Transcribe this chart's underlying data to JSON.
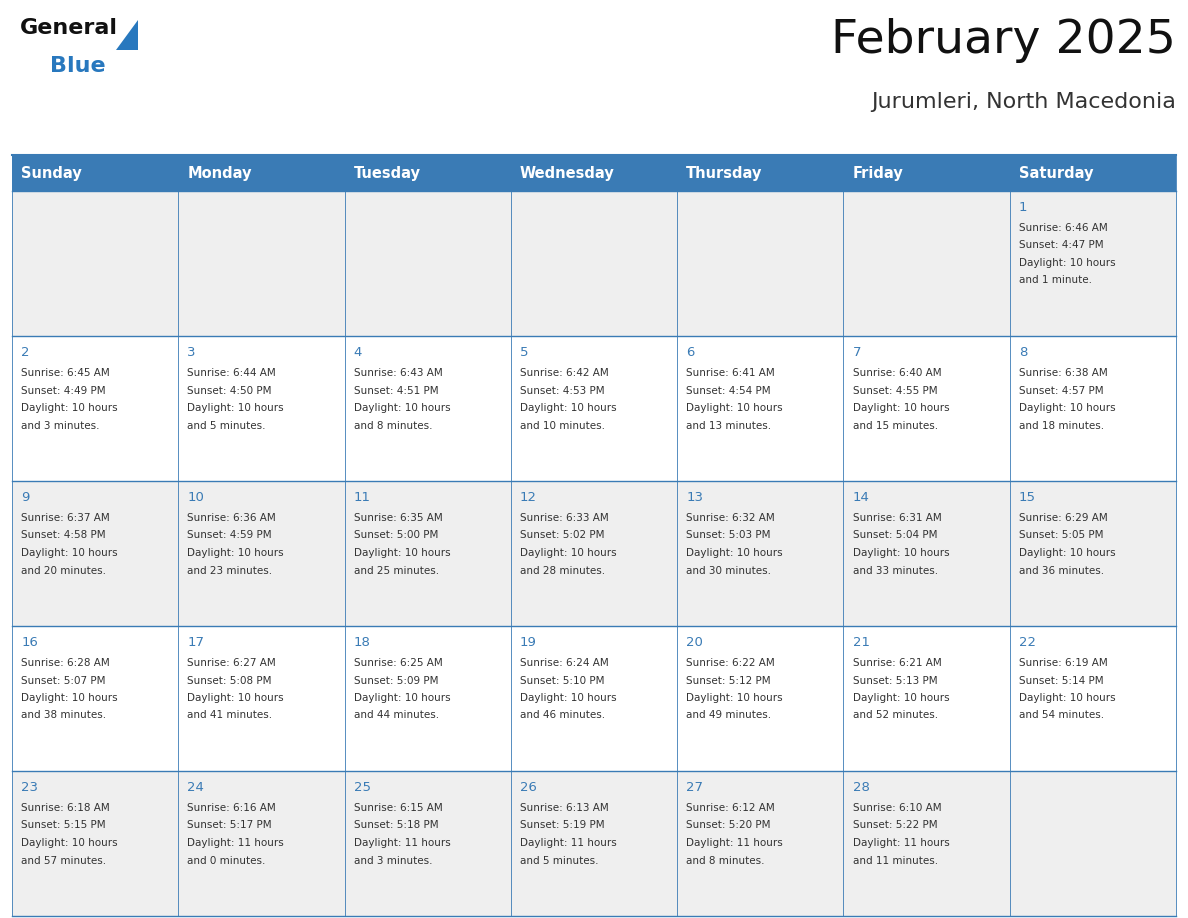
{
  "title": "February 2025",
  "subtitle": "Jurumleri, North Macedonia",
  "days_of_week": [
    "Sunday",
    "Monday",
    "Tuesday",
    "Wednesday",
    "Thursday",
    "Friday",
    "Saturday"
  ],
  "header_bg": "#3A7BB5",
  "header_text": "#FFFFFF",
  "cell_bg_odd": "#EFEFEF",
  "cell_bg_even": "#FFFFFF",
  "border_color": "#3A7BB5",
  "day_num_color": "#3A7BB5",
  "cell_text_color": "#333333",
  "title_color": "#111111",
  "subtitle_color": "#333333",
  "logo_general_color": "#111111",
  "logo_blue_color": "#2878BE",
  "logo_triangle_color": "#2878BE",
  "calendar_data": [
    [
      null,
      null,
      null,
      null,
      null,
      null,
      {
        "day": 1,
        "sunrise": "6:46 AM",
        "sunset": "4:47 PM",
        "daylight": "10 hours and 1 minute."
      }
    ],
    [
      {
        "day": 2,
        "sunrise": "6:45 AM",
        "sunset": "4:49 PM",
        "daylight": "10 hours and 3 minutes."
      },
      {
        "day": 3,
        "sunrise": "6:44 AM",
        "sunset": "4:50 PM",
        "daylight": "10 hours and 5 minutes."
      },
      {
        "day": 4,
        "sunrise": "6:43 AM",
        "sunset": "4:51 PM",
        "daylight": "10 hours and 8 minutes."
      },
      {
        "day": 5,
        "sunrise": "6:42 AM",
        "sunset": "4:53 PM",
        "daylight": "10 hours and 10 minutes."
      },
      {
        "day": 6,
        "sunrise": "6:41 AM",
        "sunset": "4:54 PM",
        "daylight": "10 hours and 13 minutes."
      },
      {
        "day": 7,
        "sunrise": "6:40 AM",
        "sunset": "4:55 PM",
        "daylight": "10 hours and 15 minutes."
      },
      {
        "day": 8,
        "sunrise": "6:38 AM",
        "sunset": "4:57 PM",
        "daylight": "10 hours and 18 minutes."
      }
    ],
    [
      {
        "day": 9,
        "sunrise": "6:37 AM",
        "sunset": "4:58 PM",
        "daylight": "10 hours and 20 minutes."
      },
      {
        "day": 10,
        "sunrise": "6:36 AM",
        "sunset": "4:59 PM",
        "daylight": "10 hours and 23 minutes."
      },
      {
        "day": 11,
        "sunrise": "6:35 AM",
        "sunset": "5:00 PM",
        "daylight": "10 hours and 25 minutes."
      },
      {
        "day": 12,
        "sunrise": "6:33 AM",
        "sunset": "5:02 PM",
        "daylight": "10 hours and 28 minutes."
      },
      {
        "day": 13,
        "sunrise": "6:32 AM",
        "sunset": "5:03 PM",
        "daylight": "10 hours and 30 minutes."
      },
      {
        "day": 14,
        "sunrise": "6:31 AM",
        "sunset": "5:04 PM",
        "daylight": "10 hours and 33 minutes."
      },
      {
        "day": 15,
        "sunrise": "6:29 AM",
        "sunset": "5:05 PM",
        "daylight": "10 hours and 36 minutes."
      }
    ],
    [
      {
        "day": 16,
        "sunrise": "6:28 AM",
        "sunset": "5:07 PM",
        "daylight": "10 hours and 38 minutes."
      },
      {
        "day": 17,
        "sunrise": "6:27 AM",
        "sunset": "5:08 PM",
        "daylight": "10 hours and 41 minutes."
      },
      {
        "day": 18,
        "sunrise": "6:25 AM",
        "sunset": "5:09 PM",
        "daylight": "10 hours and 44 minutes."
      },
      {
        "day": 19,
        "sunrise": "6:24 AM",
        "sunset": "5:10 PM",
        "daylight": "10 hours and 46 minutes."
      },
      {
        "day": 20,
        "sunrise": "6:22 AM",
        "sunset": "5:12 PM",
        "daylight": "10 hours and 49 minutes."
      },
      {
        "day": 21,
        "sunrise": "6:21 AM",
        "sunset": "5:13 PM",
        "daylight": "10 hours and 52 minutes."
      },
      {
        "day": 22,
        "sunrise": "6:19 AM",
        "sunset": "5:14 PM",
        "daylight": "10 hours and 54 minutes."
      }
    ],
    [
      {
        "day": 23,
        "sunrise": "6:18 AM",
        "sunset": "5:15 PM",
        "daylight": "10 hours and 57 minutes."
      },
      {
        "day": 24,
        "sunrise": "6:16 AM",
        "sunset": "5:17 PM",
        "daylight": "11 hours and 0 minutes."
      },
      {
        "day": 25,
        "sunrise": "6:15 AM",
        "sunset": "5:18 PM",
        "daylight": "11 hours and 3 minutes."
      },
      {
        "day": 26,
        "sunrise": "6:13 AM",
        "sunset": "5:19 PM",
        "daylight": "11 hours and 5 minutes."
      },
      {
        "day": 27,
        "sunrise": "6:12 AM",
        "sunset": "5:20 PM",
        "daylight": "11 hours and 8 minutes."
      },
      {
        "day": 28,
        "sunrise": "6:10 AM",
        "sunset": "5:22 PM",
        "daylight": "11 hours and 11 minutes."
      },
      null
    ]
  ]
}
